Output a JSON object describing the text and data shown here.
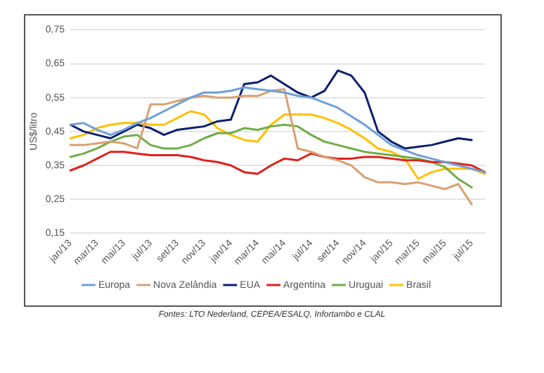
{
  "chart_data": {
    "type": "line",
    "ylabel": "US$/litro",
    "categories": [
      "jan/13",
      null,
      "mar/13",
      null,
      "mai/13",
      null,
      "jul/13",
      null,
      "set/13",
      null,
      "nov/13",
      null,
      "jan/14",
      null,
      "mar/14",
      null,
      "mai/14",
      null,
      "jul/14",
      null,
      "set/14",
      null,
      "nov/14",
      null,
      "jan/15",
      null,
      "mar/15",
      null,
      "mai/15",
      null,
      "jul/15",
      null
    ],
    "series": [
      {
        "name": "Europa",
        "color": "#6fa0d8",
        "values": [
          0.47,
          0.475,
          0.455,
          0.44,
          0.455,
          0.475,
          0.49,
          0.51,
          0.53,
          0.55,
          0.565,
          0.565,
          0.57,
          0.58,
          0.575,
          0.57,
          0.565,
          0.555,
          0.55,
          0.535,
          0.52,
          0.495,
          0.47,
          0.44,
          0.41,
          0.395,
          0.38,
          0.37,
          0.36,
          0.35,
          0.34,
          0.33
        ]
      },
      {
        "name": "Nova Zelândia",
        "color": "#d9a070",
        "values": [
          0.41,
          0.41,
          0.415,
          0.42,
          0.415,
          0.4,
          0.53,
          0.53,
          0.54,
          0.55,
          0.555,
          0.55,
          0.55,
          0.555,
          0.555,
          0.57,
          0.575,
          0.4,
          0.39,
          0.375,
          0.365,
          0.35,
          0.315,
          0.3,
          0.3,
          0.295,
          0.3,
          0.29,
          0.28,
          0.295,
          0.235,
          null
        ]
      },
      {
        "name": "EUA",
        "color": "#0a1f6e",
        "values": [
          0.47,
          0.45,
          0.44,
          0.43,
          0.45,
          0.47,
          0.46,
          0.44,
          0.455,
          0.46,
          0.465,
          0.48,
          0.485,
          0.59,
          0.595,
          0.615,
          0.59,
          0.565,
          0.55,
          0.57,
          0.63,
          0.615,
          0.565,
          0.45,
          0.42,
          0.4,
          0.405,
          0.41,
          0.42,
          0.43,
          0.425,
          null
        ]
      },
      {
        "name": "Argentina",
        "color": "#e0201b",
        "values": [
          0.335,
          0.35,
          0.37,
          0.39,
          0.39,
          0.385,
          0.38,
          0.38,
          0.38,
          0.375,
          0.365,
          0.36,
          0.35,
          0.33,
          0.325,
          0.35,
          0.37,
          0.365,
          0.385,
          0.375,
          0.37,
          0.37,
          0.375,
          0.375,
          0.37,
          0.365,
          0.365,
          0.36,
          0.36,
          0.355,
          0.35,
          0.33
        ]
      },
      {
        "name": "Uruguai",
        "color": "#70ad47",
        "values": [
          0.375,
          0.385,
          0.4,
          0.42,
          0.435,
          0.44,
          0.41,
          0.4,
          0.4,
          0.41,
          0.43,
          0.445,
          0.445,
          0.46,
          0.455,
          0.465,
          0.47,
          0.465,
          0.44,
          0.42,
          0.41,
          0.4,
          0.39,
          0.385,
          0.38,
          0.375,
          0.37,
          0.36,
          0.345,
          0.31,
          0.285,
          null
        ]
      },
      {
        "name": "Brasil",
        "color": "#ffc000",
        "values": [
          0.43,
          0.44,
          0.46,
          0.47,
          0.475,
          0.475,
          0.47,
          0.47,
          0.49,
          0.51,
          0.5,
          0.46,
          0.44,
          0.425,
          0.42,
          0.47,
          0.5,
          0.5,
          0.5,
          0.49,
          0.475,
          0.455,
          0.43,
          0.4,
          0.39,
          0.37,
          0.31,
          0.33,
          0.34,
          0.34,
          0.34,
          0.325
        ]
      }
    ],
    "ylim": [
      0.15,
      0.75
    ],
    "yticks": [
      {
        "value": 0.15,
        "label": "0,15"
      },
      {
        "value": 0.25,
        "label": "0,25"
      },
      {
        "value": 0.35,
        "label": "0,35"
      },
      {
        "value": 0.45,
        "label": "0,45"
      },
      {
        "value": 0.55,
        "label": "0,55"
      },
      {
        "value": 0.65,
        "label": "0,65"
      },
      {
        "value": 0.75,
        "label": "0,75"
      }
    ],
    "grid": "y",
    "legend": "bottom",
    "marker": "none",
    "line_style": "solid",
    "annotations": [
      "Fontes: LTO Nederland, CEPEA/ESALQ, Infortambo e CLAL"
    ]
  }
}
